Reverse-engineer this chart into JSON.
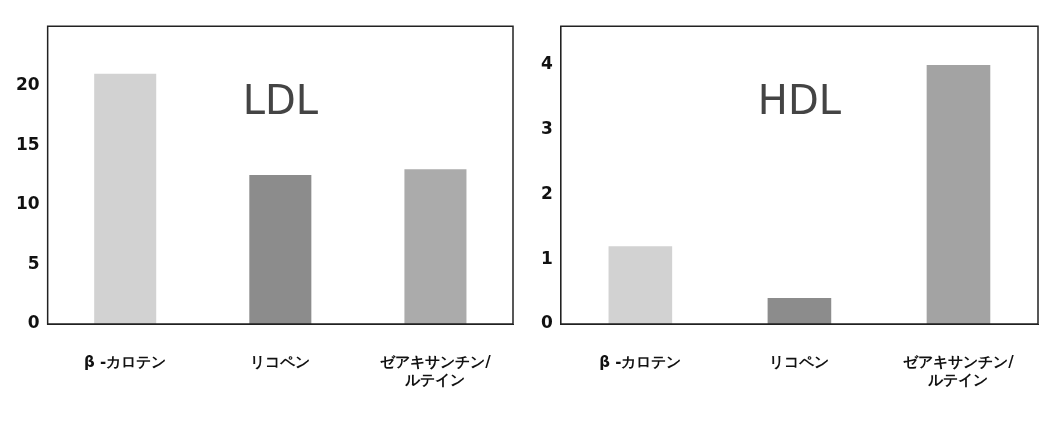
{
  "chart_data": [
    {
      "type": "bar",
      "title": "LDL",
      "categories": [
        "β -カロテン",
        "リコペン",
        "ゼアキサンチン/ルテイン"
      ],
      "values": [
        21,
        12.5,
        13
      ],
      "colors": [
        "#d2d2d2",
        "#8c8c8c",
        "#ababab"
      ],
      "ylim": [
        0,
        25
      ],
      "yticks": [
        0,
        5,
        10,
        15,
        20
      ],
      "grid": false
    },
    {
      "type": "bar",
      "title": "HDL",
      "categories": [
        "β -カロテン",
        "リコペン",
        "ゼアキサンチン/ルテイン"
      ],
      "values": [
        1.2,
        0.4,
        4
      ],
      "colors": [
        "#d2d2d2",
        "#8c8c8c",
        "#a3a3a3"
      ],
      "ylim": [
        0,
        4.6
      ],
      "yticks": [
        0,
        1,
        2,
        3,
        4
      ],
      "grid": false
    }
  ]
}
